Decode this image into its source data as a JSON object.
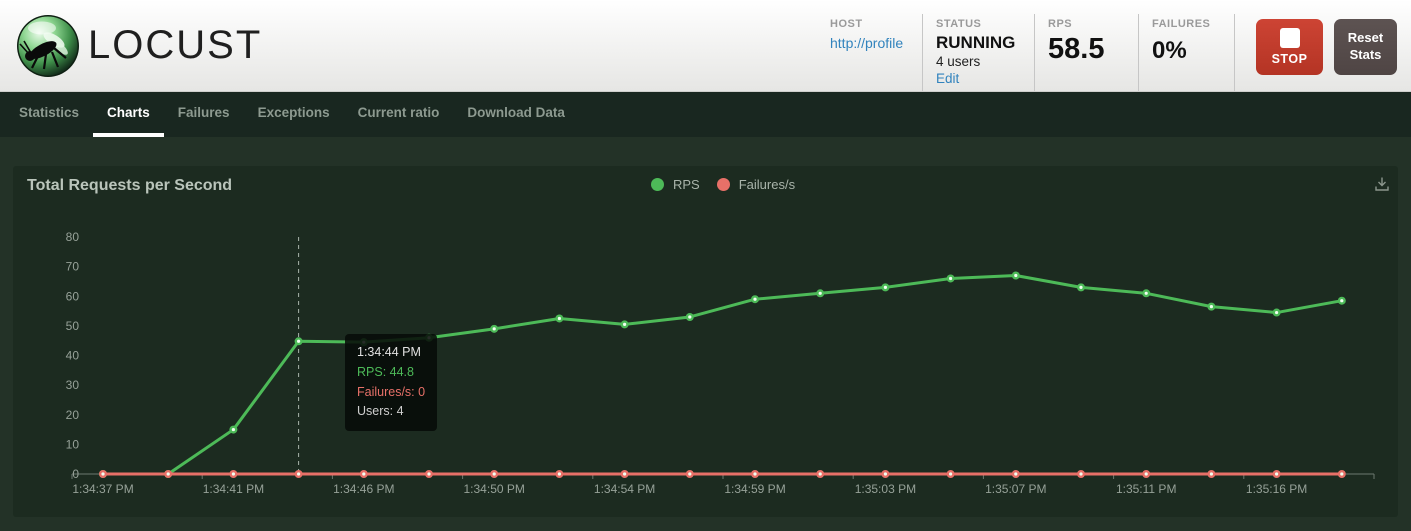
{
  "header": {
    "brand": "LOCUST",
    "host": {
      "label": "HOST",
      "value": "http://profile"
    },
    "status": {
      "label": "STATUS",
      "value": "RUNNING",
      "users": "4 users",
      "edit_label": "Edit"
    },
    "rps": {
      "label": "RPS",
      "value": "58.5"
    },
    "failures": {
      "label": "FAILURES",
      "value": "0%"
    },
    "stop_label": "STOP",
    "reset_label": "Reset Stats"
  },
  "nav": {
    "tabs": [
      {
        "label": "Statistics"
      },
      {
        "label": "Charts"
      },
      {
        "label": "Failures"
      },
      {
        "label": "Exceptions"
      },
      {
        "label": "Current ratio"
      },
      {
        "label": "Download Data"
      }
    ],
    "active_tab": "Charts"
  },
  "chart": {
    "title": "Total Requests per Second",
    "legend": [
      {
        "label": "RPS",
        "color": "#4dba58"
      },
      {
        "label": "Failures/s",
        "color": "#e77068"
      }
    ],
    "tooltip": {
      "time": "1:34:44 PM",
      "rps_line": "RPS: 44.8",
      "failures_line": "Failures/s: 0",
      "users_line": "Users: 4"
    },
    "download_icon": "download-icon"
  },
  "chart_data": {
    "type": "line",
    "title": "Total Requests per Second",
    "x_tick_labels": [
      "1:34:37 PM",
      "1:34:41 PM",
      "1:34:46 PM",
      "1:34:50 PM",
      "1:34:54 PM",
      "1:34:59 PM",
      "1:35:03 PM",
      "1:35:07 PM",
      "1:35:11 PM",
      "1:35:16 PM"
    ],
    "x_labels_every_n_points": 2,
    "y_ticks": [
      0,
      10,
      20,
      30,
      40,
      50,
      60,
      70,
      80
    ],
    "ylim": [
      0,
      80
    ],
    "grid": false,
    "legend_position": "top-center",
    "series": [
      {
        "name": "RPS",
        "color": "#4dba58",
        "values": [
          0,
          0,
          15,
          44.8,
          44.5,
          46,
          49,
          52.5,
          50.5,
          53,
          59,
          61,
          63,
          66,
          67,
          63,
          61,
          56.5,
          54.5,
          58.5
        ]
      },
      {
        "name": "Failures/s",
        "color": "#e77068",
        "values": [
          0,
          0,
          0,
          0,
          0,
          0,
          0,
          0,
          0,
          0,
          0,
          0,
          0,
          0,
          0,
          0,
          0,
          0,
          0,
          0
        ]
      }
    ],
    "hover_point": {
      "index": 3,
      "time": "1:34:44 PM",
      "rps": 44.8,
      "failures_per_s": 0,
      "users": 4
    }
  }
}
